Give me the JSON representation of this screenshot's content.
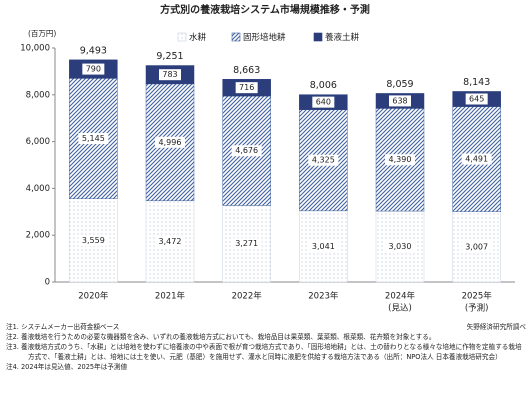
{
  "chart_data": {
    "type": "stacked_bar",
    "title": "方式別の養液栽培システム市場規模推移・予測",
    "y_unit": "(百万円)",
    "categories": [
      "2020年",
      "2021年",
      "2022年",
      "2023年",
      "2024年",
      "2025年"
    ],
    "category_notes": [
      null,
      null,
      null,
      null,
      "(見込)",
      "(予測)"
    ],
    "series": [
      {
        "name": "水耕",
        "color": "#c9d3e3",
        "pattern": "dots",
        "values": [
          3559,
          3472,
          3271,
          3041,
          3030,
          3007
        ],
        "value_labels": [
          "3,559",
          "3,472",
          "3,271",
          "3,041",
          "3,030",
          "3,007"
        ]
      },
      {
        "name": "固形培地耕",
        "color": "#3f62a0",
        "pattern": "hatch",
        "values": [
          5145,
          4996,
          4676,
          4325,
          4390,
          4491
        ],
        "value_labels": [
          "5,145",
          "4,996",
          "4,676",
          "4,325",
          "4,390",
          "4,491"
        ]
      },
      {
        "name": "養液土耕",
        "color": "#2b3d7b",
        "pattern": "solid",
        "values": [
          790,
          783,
          716,
          640,
          638,
          645
        ],
        "value_labels": [
          "790",
          "783",
          "716",
          "640",
          "638",
          "645"
        ]
      }
    ],
    "totals": [
      9493,
      9251,
      8663,
      8006,
      8059,
      8143
    ],
    "total_labels": [
      "9,493",
      "9,251",
      "8,663",
      "8,006",
      "8,059",
      "8,143"
    ],
    "ylim": [
      0,
      10000
    ],
    "yticks": [
      0,
      {
        "value": 2000,
        "label": "2,000"
      },
      {
        "value": 4000,
        "label": "4,000"
      },
      {
        "value": 6000,
        "label": "6,000"
      },
      {
        "value": 8000,
        "label": "8,000"
      },
      {
        "value": 10000,
        "label": "10,000"
      }
    ],
    "grid": false
  },
  "notes": [
    "注1. システムメーカー出荷金額ベース",
    "注2. 養液栽培を行うための必要な機器類を含み、いずれの養液栽培方式においても、栽培品目は果菜類、葉菜類、根菜類、花卉類を対象とする。",
    "注3. 養液栽培方式のうち、「水耕」とは培地を使わずに培養液の中や表面で根が育つ栽培方式であり、「固形培地耕」とは、土の替わりとなる様々な培地に作物を定植する栽培方式で、「養液土耕」とは、培地には土を使い、元肥（基肥）を施用せず、灌水と同時に液肥を供給する栽培方法である（出所：NPO法人 日本養液栽培研究会）",
    "注4. 2024年は見込値、2025年は予測値"
  ],
  "source": "矢野経済研究所調べ"
}
